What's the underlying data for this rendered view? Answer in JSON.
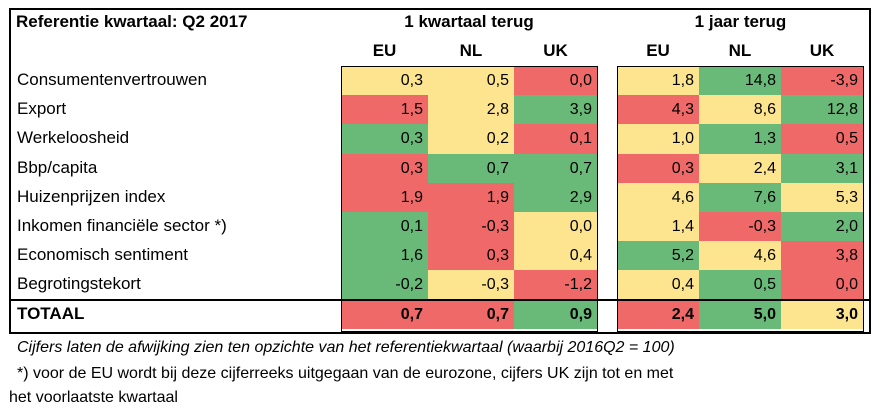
{
  "header": {
    "title": "Referentie kwartaal: Q2 2017",
    "group_q": "1 kwartaal terug",
    "group_y": "1 jaar terug",
    "cols": [
      "EU",
      "NL",
      "UK",
      "EU",
      "NL",
      "UK"
    ]
  },
  "rows": [
    {
      "label": "Consumentenvertrouwen",
      "bold": false,
      "values": [
        "0,3",
        "0,5",
        "0,0",
        "1,8",
        "14,8",
        "-3,9"
      ],
      "colors": [
        "y",
        "y",
        "r",
        "y",
        "g",
        "r"
      ]
    },
    {
      "label": "Export",
      "bold": false,
      "values": [
        "1,5",
        "2,8",
        "3,9",
        "4,3",
        "8,6",
        "12,8"
      ],
      "colors": [
        "r",
        "y",
        "g",
        "r",
        "y",
        "g"
      ]
    },
    {
      "label": "Werkeloosheid",
      "bold": false,
      "values": [
        "0,3",
        "0,2",
        "0,1",
        "1,0",
        "1,3",
        "0,5"
      ],
      "colors": [
        "g",
        "y",
        "r",
        "y",
        "g",
        "r"
      ]
    },
    {
      "label": "Bbp/capita",
      "bold": false,
      "values": [
        "0,3",
        "0,7",
        "0,7",
        "0,3",
        "2,4",
        "3,1"
      ],
      "colors": [
        "r",
        "g",
        "g",
        "r",
        "y",
        "g"
      ]
    },
    {
      "label": "Huizenprijzen index",
      "bold": false,
      "values": [
        "1,9",
        "1,9",
        "2,9",
        "4,6",
        "7,6",
        "5,3"
      ],
      "colors": [
        "r",
        "r",
        "g",
        "y",
        "g",
        "y"
      ]
    },
    {
      "label": "Inkomen financiële sector *)",
      "bold": false,
      "values": [
        "0,1",
        "-0,3",
        "0,0",
        "1,4",
        "-0,3",
        "2,0"
      ],
      "colors": [
        "g",
        "r",
        "y",
        "y",
        "r",
        "g"
      ]
    },
    {
      "label": "Economisch sentiment",
      "bold": false,
      "values": [
        "1,6",
        "0,3",
        "0,4",
        "5,2",
        "4,6",
        "3,8"
      ],
      "colors": [
        "g",
        "r",
        "y",
        "g",
        "y",
        "r"
      ]
    },
    {
      "label": "Begrotingstekort",
      "bold": false,
      "values": [
        "-0,2",
        "-0,3",
        "-1,2",
        "0,4",
        "0,5",
        "0,0"
      ],
      "colors": [
        "g",
        "y",
        "r",
        "y",
        "g",
        "r"
      ]
    },
    {
      "label": "TOTAAL",
      "bold": true,
      "values": [
        "0,7",
        "0,7",
        "0,9",
        "2,4",
        "5,0",
        "3,0"
      ],
      "colors": [
        "r",
        "r",
        "g",
        "r",
        "g",
        "y"
      ]
    }
  ],
  "footnotes": {
    "line1": "Cijfers laten de afwijking zien ten opzichte van het referentiekwartaal (waarbij 2016Q2 = 100)",
    "line2": "*) voor de EU wordt bij deze cijferreeks uitgegaan van de eurozone, cijfers UK zijn tot en met",
    "line3": "het voorlaatste kwartaal"
  },
  "colors": {
    "r": "#f06969",
    "y": "#fde58f",
    "g": "#69b979"
  }
}
